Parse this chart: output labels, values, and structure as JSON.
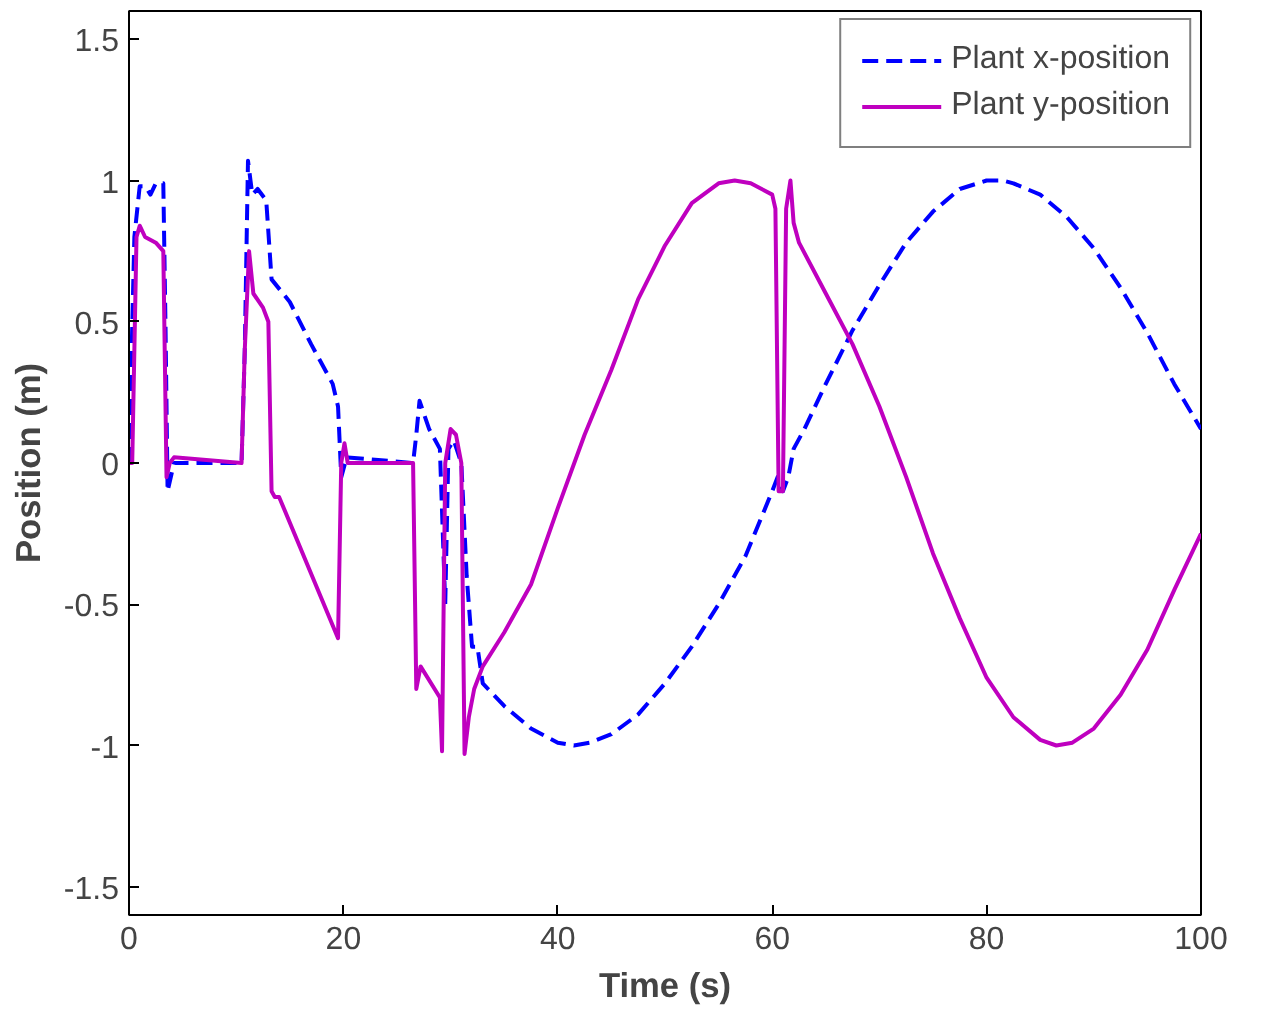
{
  "chart_data": {
    "type": "line",
    "xlabel": "Time (s)",
    "ylabel": "Position (m)",
    "xlim": [
      0,
      100
    ],
    "ylim": [
      -1.6,
      1.6
    ],
    "xticks": [
      0,
      20,
      40,
      60,
      80,
      100
    ],
    "yticks": [
      -1.5,
      -1,
      -0.5,
      0,
      0.5,
      1,
      1.5
    ],
    "grid": false,
    "legend": "top right",
    "marker": "none",
    "series": [
      {
        "name": "Plant x-position",
        "color": "#0000ff",
        "line_style": "dashed",
        "x": [
          0,
          0.5,
          1,
          1.5,
          2,
          2.5,
          3.2,
          3.4,
          3.6,
          4.2,
          10.5,
          10.8,
          11.1,
          11.5,
          12,
          12.8,
          13.3,
          15,
          17,
          19,
          19.5,
          19.8,
          20.3,
          26.5,
          26.8,
          27.1,
          28,
          29,
          29.5,
          29.8,
          30.3,
          31,
          31.5,
          32,
          32.5,
          33,
          35,
          37.5,
          40,
          41.5,
          43,
          45,
          47.5,
          50,
          52.5,
          55,
          57.5,
          60,
          60.5,
          61,
          61.5,
          62,
          63,
          65,
          67.5,
          70,
          72.5,
          75,
          77.5,
          80,
          81.5,
          82.5,
          85,
          87.5,
          90,
          92.5,
          95,
          97.5,
          100
        ],
        "values": [
          0,
          0.8,
          0.98,
          0.98,
          0.95,
          0.99,
          0.99,
          0.5,
          -0.1,
          0,
          0,
          0.4,
          1.07,
          0.95,
          0.97,
          0.93,
          0.65,
          0.57,
          0.42,
          0.28,
          0.2,
          -0.05,
          0.02,
          0,
          0.1,
          0.22,
          0.12,
          0.05,
          -0.5,
          0.05,
          0.08,
          0,
          -0.4,
          -0.65,
          -0.65,
          -0.78,
          -0.86,
          -0.94,
          -0.99,
          -1,
          -0.99,
          -0.96,
          -0.89,
          -0.78,
          -0.65,
          -0.5,
          -0.33,
          -0.1,
          -0.05,
          -0.1,
          -0.05,
          0.05,
          0.12,
          0.28,
          0.47,
          0.63,
          0.78,
          0.89,
          0.97,
          1,
          1,
          0.99,
          0.95,
          0.87,
          0.76,
          0.62,
          0.46,
          0.28,
          0.12
        ]
      },
      {
        "name": "Plant y-position",
        "color": "#bf00bf",
        "line_style": "solid",
        "x": [
          0,
          0.3,
          0.7,
          1,
          1.5,
          2.5,
          3.2,
          3.5,
          3.8,
          4.2,
          10.5,
          10.8,
          11.2,
          11.6,
          12.5,
          13,
          13.3,
          13.6,
          14,
          19.5,
          19.8,
          20.1,
          20.4,
          26.5,
          26.8,
          27.2,
          29,
          29.2,
          29.5,
          30,
          30.5,
          31,
          31.3,
          31.7,
          32.2,
          33,
          35,
          37.5,
          40,
          42.5,
          45,
          47.5,
          50,
          52.5,
          55,
          56.5,
          58,
          60,
          60.3,
          60.6,
          61,
          61.3,
          61.7,
          62,
          62.5,
          65,
          67.5,
          70,
          72.5,
          75,
          77.5,
          80,
          82.5,
          85,
          86.5,
          88,
          90,
          92.5,
          95,
          97.5,
          100
        ],
        "values": [
          0,
          0,
          0.8,
          0.84,
          0.8,
          0.78,
          0.75,
          -0.05,
          0,
          0.02,
          0,
          0.4,
          0.75,
          0.6,
          0.55,
          0.5,
          -0.1,
          -0.12,
          -0.12,
          -0.62,
          0,
          0.07,
          0,
          0,
          -0.8,
          -0.72,
          -0.83,
          -1.02,
          0,
          0.12,
          0.1,
          0,
          -1.03,
          -0.9,
          -0.8,
          -0.72,
          -0.6,
          -0.43,
          -0.16,
          0.1,
          0.33,
          0.58,
          0.77,
          0.92,
          0.99,
          1,
          0.99,
          0.95,
          0.9,
          -0.1,
          -0.1,
          0.9,
          1,
          0.85,
          0.78,
          0.6,
          0.42,
          0.2,
          -0.05,
          -0.32,
          -0.55,
          -0.76,
          -0.9,
          -0.98,
          -1,
          -0.99,
          -0.94,
          -0.82,
          -0.66,
          -0.45,
          -0.25
        ]
      }
    ]
  }
}
